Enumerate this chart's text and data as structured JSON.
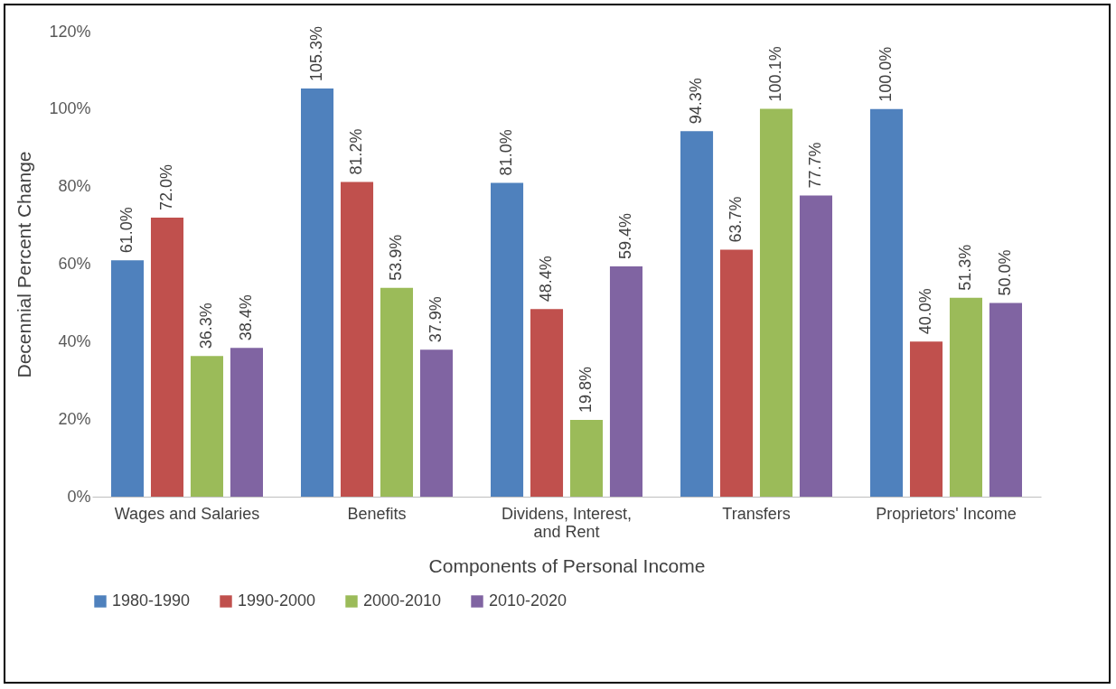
{
  "chart_data": {
    "type": "bar",
    "xlabel": "Components of Personal Income",
    "ylabel": "Decennial Percent Change",
    "categories": [
      "Wages and Salaries",
      "Benefits",
      "Dividens, Interest, and Rent",
      "Transfers",
      "Proprietors' Income"
    ],
    "ylim": [
      0,
      120
    ],
    "yticks": [
      {
        "value": 0,
        "label": "0%"
      },
      {
        "value": 20,
        "label": "20%"
      },
      {
        "value": 40,
        "label": "40%"
      },
      {
        "value": 60,
        "label": "60%"
      },
      {
        "value": 80,
        "label": "80%"
      },
      {
        "value": 100,
        "label": "100%"
      },
      {
        "value": 120,
        "label": "120%"
      }
    ],
    "legend": "bottom",
    "series": [
      {
        "name": "1980-1990",
        "color": "#4f81bd",
        "values": [
          61.0,
          105.3,
          81.0,
          94.3,
          100.0
        ],
        "value_labels": [
          "61.0%",
          "105.3%",
          "81.0%",
          "94.3%",
          "100.0%"
        ]
      },
      {
        "name": "1990-2000",
        "color": "#c0504d",
        "values": [
          72.0,
          81.2,
          48.4,
          63.7,
          40.0
        ],
        "value_labels": [
          "72.0%",
          "81.2%",
          "48.4%",
          "63.7%",
          "40.0%"
        ]
      },
      {
        "name": "2000-2010",
        "color": "#9bbb59",
        "values": [
          36.3,
          53.9,
          19.8,
          100.1,
          51.3
        ],
        "value_labels": [
          "36.3%",
          "53.9%",
          "19.8%",
          "100.1%",
          "51.3%"
        ]
      },
      {
        "name": "2010-2020",
        "color": "#8064a2",
        "values": [
          38.4,
          37.9,
          59.4,
          77.7,
          50.0
        ],
        "value_labels": [
          "38.4%",
          "37.9%",
          "59.4%",
          "77.7%",
          "50.0%"
        ]
      }
    ]
  }
}
